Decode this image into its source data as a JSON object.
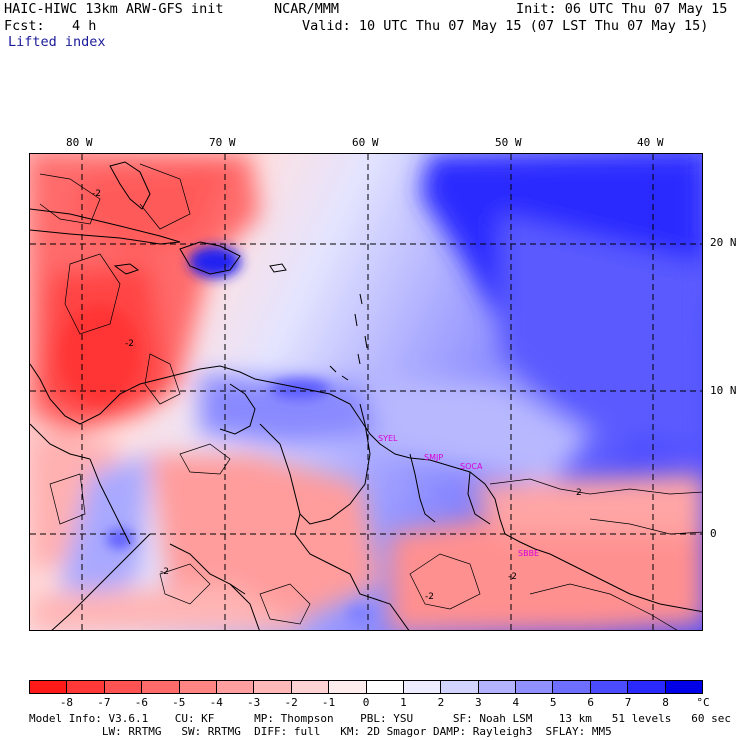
{
  "header": {
    "model": "HAIC-HIWC 13km ARW-GFS init",
    "org": "NCAR/MMM",
    "init": "Init: 06 UTC Thu 07 May 15",
    "fcst_label": "Fcst:",
    "fcst_value": "4 h",
    "valid": "Valid: 10 UTC Thu 07 May 15 (07 LST Thu 07 May 15)",
    "field": "Lifted index"
  },
  "axes": {
    "lon_labels": [
      "80 W",
      "70 W",
      "60 W",
      "50 W",
      "40 W"
    ],
    "lat_labels": [
      "20 N",
      "10 N",
      "0"
    ]
  },
  "sites": [
    "SYEL",
    "SMJP",
    "SOCA",
    "SBBE"
  ],
  "contour_labels": [
    "-2",
    "-2",
    "-2",
    "-2",
    "-2",
    "2"
  ],
  "colorbar": {
    "labels": [
      "-8",
      "-7",
      "-6",
      "-5",
      "-4",
      "-3",
      "-2",
      "-1",
      "0",
      "1",
      "2",
      "3",
      "4",
      "5",
      "6",
      "7",
      "8"
    ],
    "unit": "°C",
    "colors": [
      "#ff1a1a",
      "#ff3838",
      "#ff5252",
      "#ff6b6b",
      "#ff8585",
      "#ff9f9f",
      "#ffb9b9",
      "#ffd3d3",
      "#ffeded",
      "#ffffff",
      "#ededff",
      "#d3d3ff",
      "#b2b2ff",
      "#9090ff",
      "#6e6eff",
      "#4c4cff",
      "#2a2aff",
      "#0000e8"
    ]
  },
  "footer": {
    "line1": "Model Info: V3.6.1    CU: KF      MP: Thompson    PBL: YSU      SF: Noah LSM    13 km   51 levels   60 sec",
    "line2": "           LW: RRTMG   SW: RRTMG  DIFF: full   KM: 2D Smagor DAMP: Rayleigh3  SFLAY: MM5"
  }
}
